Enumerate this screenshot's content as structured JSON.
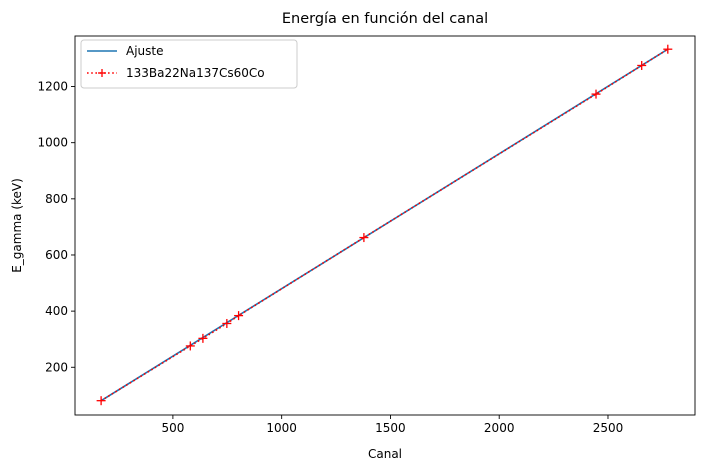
{
  "chart_data": {
    "type": "line",
    "title": "Energía en función del canal",
    "xlabel": "Canal",
    "ylabel": "E_gamma (keV)",
    "xlim": [
      50,
      2900
    ],
    "ylim": [
      30,
      1380
    ],
    "xticks": [
      500,
      1000,
      1500,
      2000,
      2500
    ],
    "yticks": [
      200,
      400,
      600,
      800,
      1000,
      1200
    ],
    "grid": false,
    "legend_position": "top-left",
    "series": [
      {
        "name": "Ajuste",
        "style": "solid",
        "color": "#1f77b4",
        "x": [
          170,
          2775
        ],
        "y": [
          81,
          1333
        ]
      },
      {
        "name": "133Ba22Na137Cs60Co",
        "style": "dotted",
        "marker": "plus",
        "color": "#ff0000",
        "x": [
          170,
          580,
          638,
          748,
          802,
          1378,
          2445,
          2655,
          2775
        ],
        "y": [
          81,
          276,
          303,
          356,
          384,
          662,
          1173,
          1275,
          1333
        ]
      }
    ]
  }
}
